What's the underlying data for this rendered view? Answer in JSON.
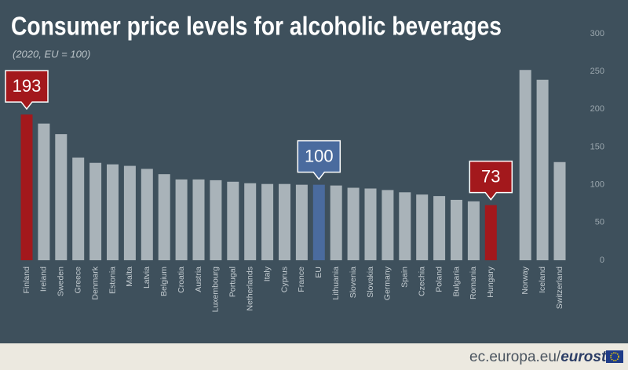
{
  "chart_data": {
    "type": "bar",
    "title": "Consumer price levels for alcoholic beverages",
    "subtitle": "(2020, EU = 100)",
    "categories": [
      "Finland",
      "Ireland",
      "Sweden",
      "Greece",
      "Denmark",
      "Estonia",
      "Malta",
      "Latvia",
      "Belgium",
      "Croatia",
      "Austria",
      "Luxembourg",
      "Portugal",
      "Netherlands",
      "Italy",
      "Cyprus",
      "France",
      "EU",
      "Lithuania",
      "Slovenia",
      "Slovakia",
      "Germany",
      "Spain",
      "Czechia",
      "Poland",
      "Bulgaria",
      "Romania",
      "Hungary",
      "Norway",
      "Iceland",
      "Switzerland"
    ],
    "values": [
      193,
      181,
      167,
      136,
      129,
      127,
      125,
      121,
      114,
      107,
      107,
      106,
      104,
      102,
      101,
      101,
      100,
      100,
      99,
      96,
      95,
      93,
      90,
      87,
      85,
      80,
      78,
      73,
      252,
      239,
      130
    ],
    "color": "#a9b3b9",
    "colors": [
      "#a3181c",
      "#a9b3b9",
      "#a9b3b9",
      "#a9b3b9",
      "#a9b3b9",
      "#a9b3b9",
      "#a9b3b9",
      "#a9b3b9",
      "#a9b3b9",
      "#a9b3b9",
      "#a9b3b9",
      "#a9b3b9",
      "#a9b3b9",
      "#a9b3b9",
      "#a9b3b9",
      "#a9b3b9",
      "#a9b3b9",
      "#4a6b9e",
      "#a9b3b9",
      "#a9b3b9",
      "#a9b3b9",
      "#a9b3b9",
      "#a9b3b9",
      "#a9b3b9",
      "#a9b3b9",
      "#a9b3b9",
      "#a9b3b9",
      "#a3181c",
      "#a9b3b9",
      "#a9b3b9",
      "#a9b3b9"
    ],
    "ylim": [
      0,
      300
    ],
    "yticks": [
      0,
      50,
      100,
      150,
      200,
      250,
      300
    ],
    "grid": false
  },
  "footer": {
    "site": "ec.europa.eu/",
    "brand": "eurostat"
  }
}
